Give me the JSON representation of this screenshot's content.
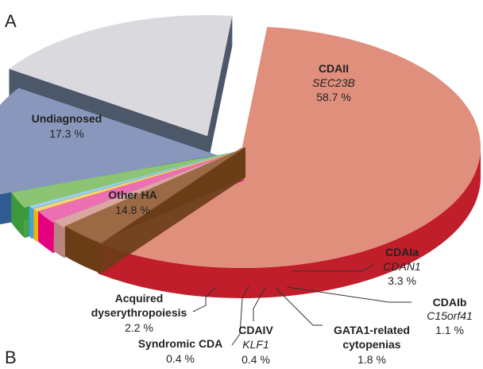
{
  "panel_labels": {
    "top": "A",
    "bottom": "B"
  },
  "chart_data": {
    "type": "pie",
    "style": "3d-exploded",
    "title": "",
    "unit": "%",
    "slices": [
      {
        "key": "cdaii",
        "name": "CDAII",
        "gene": "SEC23B",
        "pct_label": "58.7 %",
        "value": 58.7,
        "color": "#e08f7d",
        "side": "#c01e2a"
      },
      {
        "key": "cdaia",
        "name": "CDAIa",
        "gene": "CDAN1",
        "pct_label": "3.3 %",
        "value": 3.3,
        "color": "#9b6a45",
        "side": "#6a3d17"
      },
      {
        "key": "cdaib",
        "name": "CDAIb",
        "gene": "C15orf41",
        "pct_label": "1.1 %",
        "value": 1.1,
        "color": "#d9a6a0",
        "side": "#b8847d"
      },
      {
        "key": "gata1",
        "name": "GATA1-related cytopenias",
        "gene": "",
        "pct_label": "1.8 %",
        "value": 1.8,
        "color": "#ec6fb4",
        "side": "#e4007f"
      },
      {
        "key": "cdaiv",
        "name": "CDAIV",
        "gene": "KLF1",
        "pct_label": "0.4 %",
        "value": 0.4,
        "color": "#f8d27a",
        "side": "#f2b400"
      },
      {
        "key": "syndromic",
        "name": "Syndromic CDA",
        "gene": "",
        "pct_label": "0.4 %",
        "value": 0.4,
        "color": "#9fd1ec",
        "side": "#3fa4dc"
      },
      {
        "key": "acquired",
        "name": "Acquired dyserythropoiesis",
        "gene": "",
        "pct_label": "2.2 %",
        "value": 2.2,
        "color": "#8cc474",
        "side": "#3a9a3b"
      },
      {
        "key": "other_ha",
        "name": "Other HA",
        "gene": "",
        "pct_label": "14.8 %",
        "value": 14.8,
        "color": "#8a97bd",
        "side": "#1c4d88"
      },
      {
        "key": "undiag",
        "name": "Undiagnosed",
        "gene": "",
        "pct_label": "17.3 %",
        "value": 17.3,
        "color": "#d9d9de",
        "side": "#3d4a5c"
      }
    ]
  }
}
